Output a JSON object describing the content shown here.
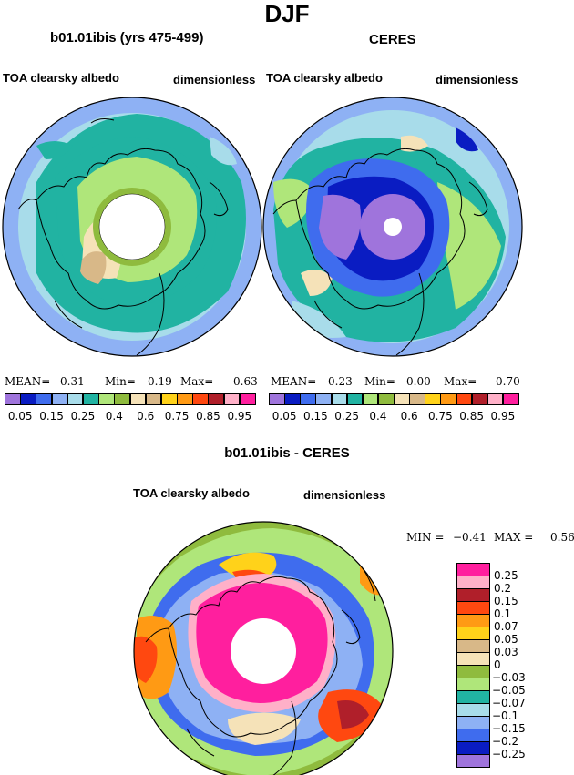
{
  "figure": {
    "main_title": "DJF",
    "diff_title": "b01.01ibis - CERES"
  },
  "colors": {
    "ice_pink": "#ff1f9e",
    "purple": "#9f74dc",
    "navy": "#0a1cc2",
    "blue": "#3f6cee",
    "lightblue": "#8eb1f4",
    "skyblue": "#a8dcea",
    "teal": "#21b3a2",
    "lightgreen": "#afe67a",
    "green": "#8fbb3e",
    "cream": "#f5e2b8",
    "tan": "#d8b888",
    "yellow": "#ffd21a",
    "orange": "#ff9a14",
    "redorange": "#ff4810",
    "darkred": "#b01f2a",
    "pink": "#ffb0c8"
  },
  "chart_data": [
    {
      "type": "heatmap",
      "title": "b01.01ibis (yrs 475-499)",
      "left_label": "TOA clearsky albedo",
      "right_label": "dimensionless",
      "stats": {
        "mean_label": "MEAN=",
        "mean": "0.31",
        "min_label": "Min=",
        "min": "0.19",
        "max_label": "Max=",
        "max": "0.63"
      },
      "colorbar_levels": [
        "0.05",
        "0.15",
        "0.25",
        "0.4",
        "0.6",
        "0.75",
        "0.85",
        "0.95"
      ],
      "colorbar_colors": [
        "#9f74dc",
        "#0a1cc2",
        "#3f6cee",
        "#8eb1f4",
        "#a8dcea",
        "#21b3a2",
        "#afe67a",
        "#8fbb3e",
        "#f5e2b8",
        "#d8b888",
        "#ffd21a",
        "#ff9a14",
        "#ff4810",
        "#b01f2a",
        "#ffb0c8",
        "#ff1f9e"
      ]
    },
    {
      "type": "heatmap",
      "title": "CERES",
      "left_label": "TOA clearsky albedo",
      "right_label": "dimensionless",
      "stats": {
        "mean_label": "MEAN=",
        "mean": "0.23",
        "min_label": "Min=",
        "min": "0.00",
        "max_label": "Max=",
        "max": "0.70"
      },
      "colorbar_levels": [
        "0.05",
        "0.15",
        "0.25",
        "0.4",
        "0.6",
        "0.75",
        "0.85",
        "0.95"
      ],
      "colorbar_colors": [
        "#9f74dc",
        "#0a1cc2",
        "#3f6cee",
        "#8eb1f4",
        "#a8dcea",
        "#21b3a2",
        "#afe67a",
        "#8fbb3e",
        "#f5e2b8",
        "#d8b888",
        "#ffd21a",
        "#ff9a14",
        "#ff4810",
        "#b01f2a",
        "#ffb0c8",
        "#ff1f9e"
      ]
    },
    {
      "type": "heatmap",
      "title": "b01.01ibis - CERES",
      "left_label": "TOA clearsky albedo",
      "right_label": "dimensionless",
      "stats": {
        "min_label": "MIN =",
        "min": "−0.41",
        "max_label": "MAX =",
        "max": "0.56"
      },
      "colorbar_levels": [
        "0.25",
        "0.2",
        "0.15",
        "0.1",
        "0.07",
        "0.05",
        "0.03",
        "0",
        "−0.03",
        "−0.05",
        "−0.07",
        "−0.1",
        "−0.15",
        "−0.2",
        "−0.25"
      ],
      "colorbar_colors": [
        "#ff1f9e",
        "#ffb0c8",
        "#b01f2a",
        "#ff4810",
        "#ff9a14",
        "#ffd21a",
        "#d8b888",
        "#f5e2b8",
        "#8fbb3e",
        "#afe67a",
        "#21b3a2",
        "#a8dcea",
        "#8eb1f4",
        "#3f6cee",
        "#0a1cc2",
        "#9f74dc"
      ]
    }
  ]
}
